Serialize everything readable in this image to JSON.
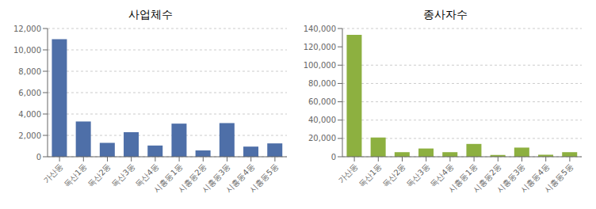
{
  "chart_data": [
    {
      "type": "bar",
      "title": "사업체수",
      "categories": [
        "가산동",
        "독산1동",
        "독산2동",
        "독산3동",
        "독산4동",
        "시흥동1동",
        "시흥동2동",
        "시흥동3동",
        "시흥동4동",
        "시흥동5동"
      ],
      "values": [
        11000,
        3300,
        1300,
        2300,
        1050,
        3100,
        600,
        3150,
        950,
        1250
      ],
      "color": "#4e6fa8",
      "ylim": [
        0,
        12000
      ],
      "yticks": [
        0,
        {
          "value": 2000,
          "label": "2,000"
        },
        {
          "value": 4000,
          "label": "4,000"
        },
        {
          "value": 6000,
          "label": "6,000"
        },
        {
          "value": 8000,
          "label": "8,000"
        },
        {
          "value": 10000,
          "label": "10,000"
        },
        {
          "value": 12000,
          "label": "12,000"
        }
      ],
      "grid": true
    },
    {
      "type": "bar",
      "title": "종사자수",
      "categories": [
        "가산동",
        "독산1동",
        "독산2동",
        "독산3동",
        "독산4동",
        "시흥동1동",
        "시흥동2동",
        "시흥동3동",
        "시흥동4동",
        "시흥동5동"
      ],
      "values": [
        133000,
        21000,
        5000,
        9000,
        5000,
        14000,
        2000,
        10000,
        2200,
        5000
      ],
      "color": "#8db040",
      "ylim": [
        0,
        140000
      ],
      "yticks": [
        0,
        {
          "value": 20000,
          "label": "20,000"
        },
        {
          "value": 40000,
          "label": "40,000"
        },
        {
          "value": 60000,
          "label": "60,000"
        },
        {
          "value": 80000,
          "label": "80,000"
        },
        {
          "value": 100000,
          "label": "100,000"
        },
        {
          "value": 120000,
          "label": "120,000"
        },
        {
          "value": 140000,
          "label": "140,000"
        }
      ],
      "grid": true
    }
  ]
}
